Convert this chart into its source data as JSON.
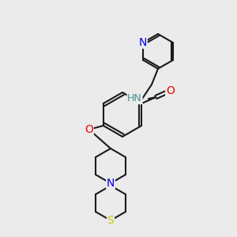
{
  "bg_color": "#ebebeb",
  "bond_color": "#1a1a1a",
  "bond_width": 1.5,
  "atom_colors": {
    "N": "#0000ee",
    "O": "#ee0000",
    "S": "#cccc00",
    "H": "#4a9090",
    "C": "#1a1a1a"
  },
  "font_size": 9,
  "font_size_small": 8
}
